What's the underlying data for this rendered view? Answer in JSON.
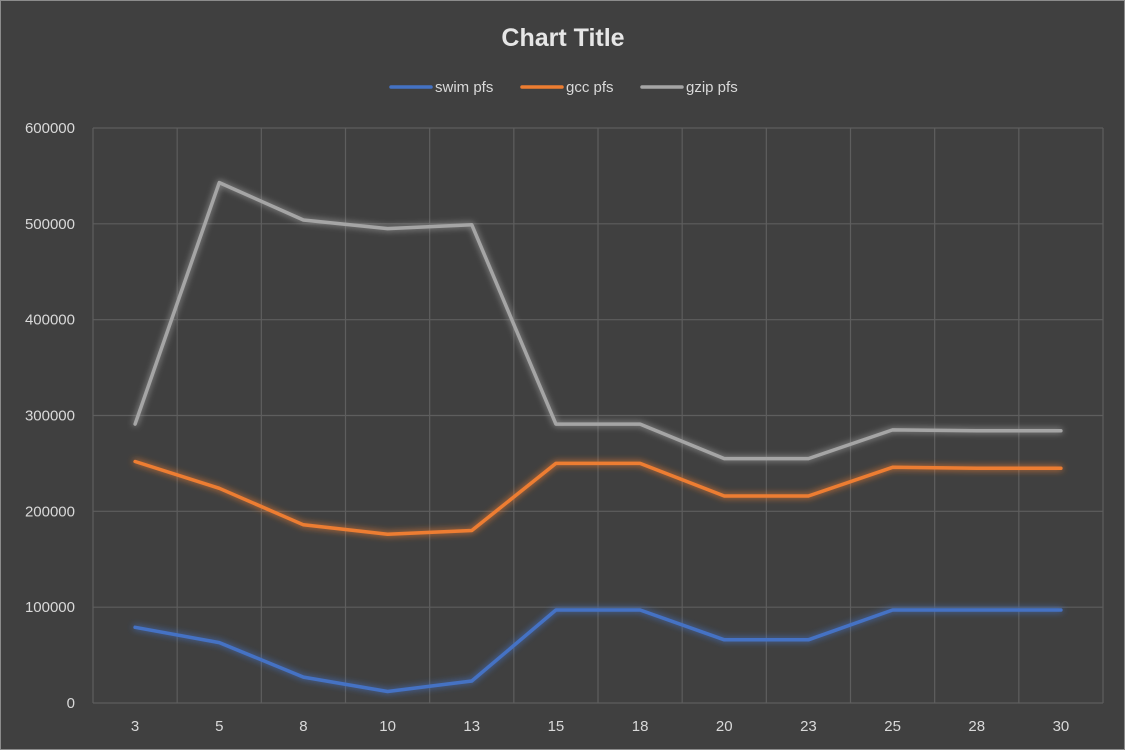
{
  "chart_data": {
    "type": "line",
    "title": "Chart Title",
    "xlabel": "",
    "ylabel": "",
    "categories": [
      "3",
      "5",
      "8",
      "10",
      "13",
      "15",
      "18",
      "20",
      "23",
      "25",
      "28",
      "30"
    ],
    "ylim": [
      0,
      600000
    ],
    "yticks": [
      "0",
      "100000",
      "200000",
      "300000",
      "400000",
      "500000",
      "600000"
    ],
    "grid": true,
    "legend_position": "top",
    "series": [
      {
        "name": "swim pfs",
        "color": "#4472c4",
        "values": [
          79000,
          63000,
          27000,
          12000,
          23000,
          97000,
          97000,
          66000,
          66000,
          97000,
          97000,
          97000
        ]
      },
      {
        "name": "gcc pfs",
        "color": "#ed7d31",
        "values": [
          252000,
          224000,
          186000,
          176000,
          180000,
          250000,
          250000,
          216000,
          216000,
          246000,
          245000,
          245000
        ]
      },
      {
        "name": "gzip pfs",
        "color": "#a5a5a5",
        "values": [
          291000,
          543000,
          504000,
          495000,
          499000,
          291000,
          291000,
          255000,
          255000,
          285000,
          284000,
          284000
        ]
      }
    ]
  }
}
